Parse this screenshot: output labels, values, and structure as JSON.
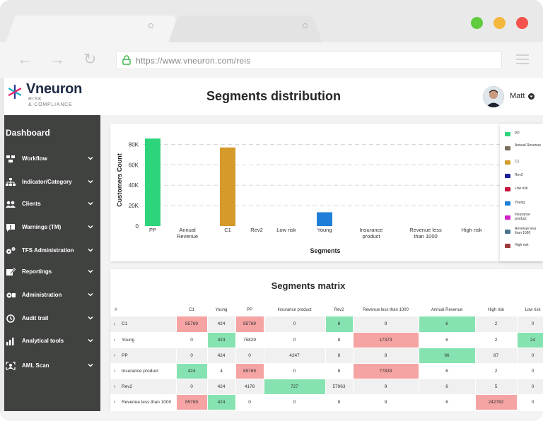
{
  "browser": {
    "url": "https://www.vneuron.com/reis",
    "traffic_colors": {
      "close": "#f4524d",
      "minimize": "#f3b73e",
      "maximize": "#5fcb3e"
    }
  },
  "header": {
    "logo_name": "Vneuron",
    "logo_tagline_1": "RISK",
    "logo_tagline_2": "& COMPLIANCE",
    "page_title": "Segments distribution",
    "user_name": "Matt"
  },
  "sidebar": {
    "title": "Dashboard",
    "items": [
      {
        "label": "Workflow",
        "icon": "workflow-icon"
      },
      {
        "label": "Indicator/Category",
        "icon": "hierarchy-icon"
      },
      {
        "label": "Clients",
        "icon": "users-icon"
      },
      {
        "label": "Warnings (TM)",
        "icon": "warning-message-icon"
      },
      {
        "label": "TFS Administration",
        "icon": "gears-icon"
      },
      {
        "label": "Reportings",
        "icon": "edit-icon"
      },
      {
        "label": "Administration",
        "icon": "admin-gear-icon"
      },
      {
        "label": "Audit trail",
        "icon": "history-icon"
      },
      {
        "label": "Analytical tools",
        "icon": "bar-chart-icon"
      },
      {
        "label": "AML Scan",
        "icon": "scan-user-icon"
      }
    ]
  },
  "chart_data": {
    "type": "bar",
    "categories": [
      "PP",
      "Annual Revenue",
      "C1",
      "Rev2",
      "Low risk",
      "Young",
      "Insurance product",
      "Revenue less than 1000",
      "High risk"
    ],
    "values": [
      85769,
      0,
      77000,
      0,
      0,
      13500,
      0,
      0,
      0
    ],
    "colors": [
      "#2ed47a",
      "#7d6d5d",
      "#d49a2a",
      "#1f1f9e",
      "#c4133b",
      "#1e7ed8",
      "#d41ec9",
      "#4a7590",
      "#9e3a3a"
    ],
    "xlabel": "Segments",
    "ylabel": "Customers Count",
    "yticks": [
      "0",
      "20K",
      "40K",
      "60K",
      "80K"
    ],
    "ylim": [
      0,
      90000
    ],
    "grid": true,
    "legend_position": "right",
    "legend": [
      "PP",
      "Annual Revenue",
      "C1",
      "Rev2",
      "Low risk",
      "Young",
      "Insurance product",
      "Revenue less than 1000",
      "High risk"
    ]
  },
  "matrix": {
    "title": "Segments matrix",
    "columns": [
      "#",
      "C1",
      "Young",
      "PP",
      "Insurance product",
      "Rev2",
      "Revenue less than 1000",
      "Annual Revenue",
      "High risk",
      "Low risk"
    ],
    "rows": [
      {
        "label": "C1",
        "cells": [
          "85769",
          "424",
          "85769",
          "0",
          "8",
          "9",
          "6",
          "2",
          "0"
        ],
        "hl": [
          "red",
          "",
          "red",
          "",
          "green",
          "",
          "green",
          "",
          ""
        ]
      },
      {
        "label": "Young",
        "cells": [
          "0",
          "424",
          "75829",
          "0",
          "8",
          "17373",
          "6",
          "2",
          "24"
        ],
        "hl": [
          "",
          "green",
          "",
          "",
          "",
          "red",
          "",
          "",
          "green"
        ]
      },
      {
        "label": "PP",
        "cells": [
          "0",
          "424",
          "0",
          "4247",
          "8",
          "9",
          "96",
          "87",
          "0"
        ],
        "hl": [
          "",
          "",
          "",
          "",
          "",
          "",
          "green",
          "",
          ""
        ]
      },
      {
        "label": "Insurance product",
        "cells": [
          "424",
          "4",
          "85769",
          "0",
          "8",
          "77833",
          "6",
          "2",
          "0"
        ],
        "hl": [
          "green",
          "",
          "red",
          "",
          "",
          "red",
          "",
          "",
          ""
        ]
      },
      {
        "label": "Rev2",
        "cells": [
          "0",
          "424",
          "4178",
          "727",
          "57963",
          "9",
          "6",
          "5",
          "0"
        ],
        "hl": [
          "",
          "",
          "",
          "green",
          "",
          "",
          "",
          "",
          ""
        ]
      },
      {
        "label": "Revenue less than 1000",
        "cells": [
          "85769",
          "424",
          "0",
          "0",
          "8",
          "9",
          "6",
          "242782",
          "0"
        ],
        "hl": [
          "red",
          "green",
          "",
          "",
          "",
          "",
          "",
          "red",
          ""
        ]
      }
    ]
  }
}
